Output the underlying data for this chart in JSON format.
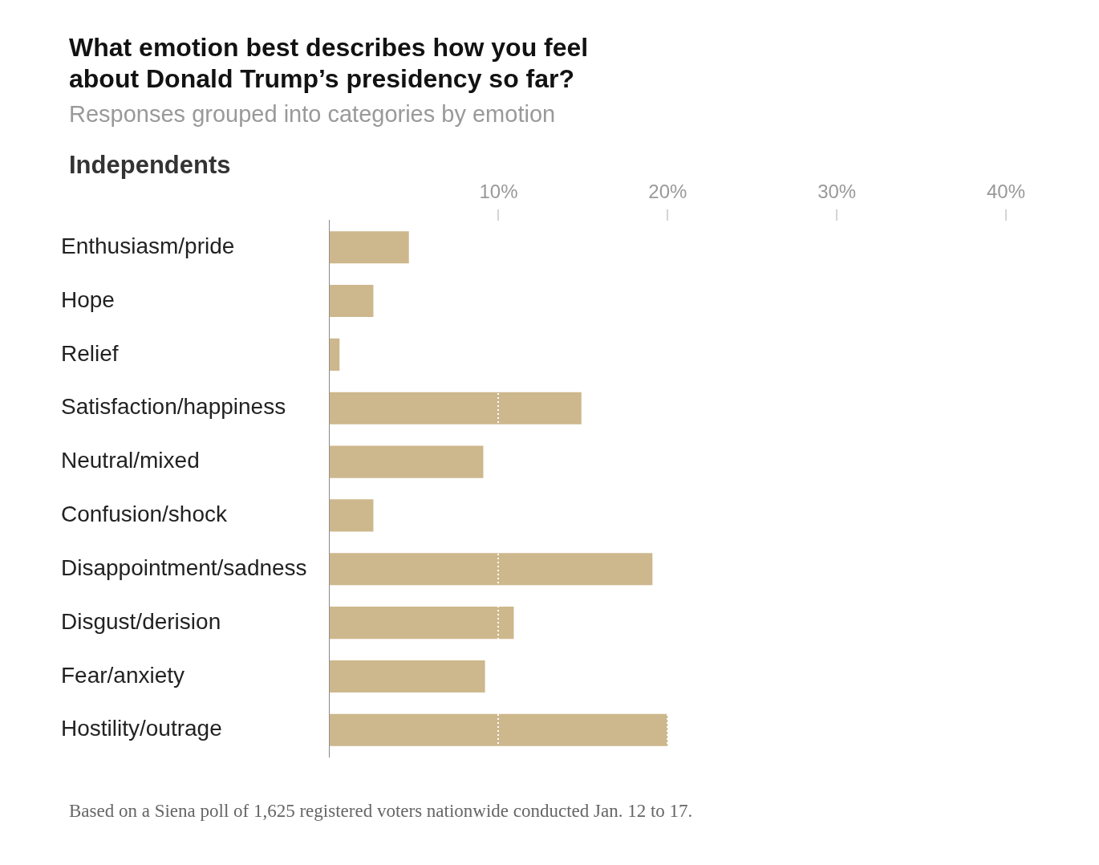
{
  "chart_data": {
    "type": "bar",
    "orientation": "horizontal",
    "title": "What emotion best describes how you feel about Donald Trump’s presidency so far?",
    "subtitle": "Responses grouped into categories by emotion",
    "annotations": [
      "Independents",
      "Based on a Siena poll of 1,625 registered voters nationwide conducted Jan. 12 to 17."
    ],
    "categories": [
      "Enthusiasm/pride",
      "Hope",
      "Relief",
      "Satisfaction/happiness",
      "Neutral/mixed",
      "Confusion/shock",
      "Disappointment/sadness",
      "Disgust/derision",
      "Fear/anxiety",
      "Hostility/outrage"
    ],
    "values": [
      4.7,
      2.6,
      0.6,
      14.9,
      9.1,
      2.6,
      19.1,
      10.9,
      9.2,
      20.0
    ],
    "color": "#cdb78c",
    "xlim": [
      0,
      40
    ],
    "xticks": [
      {
        "value": 10,
        "label": "10%"
      },
      {
        "value": 20,
        "label": "20%"
      },
      {
        "value": 30,
        "label": "30%"
      },
      {
        "value": 40,
        "label": "40%"
      }
    ],
    "grid": "x"
  }
}
